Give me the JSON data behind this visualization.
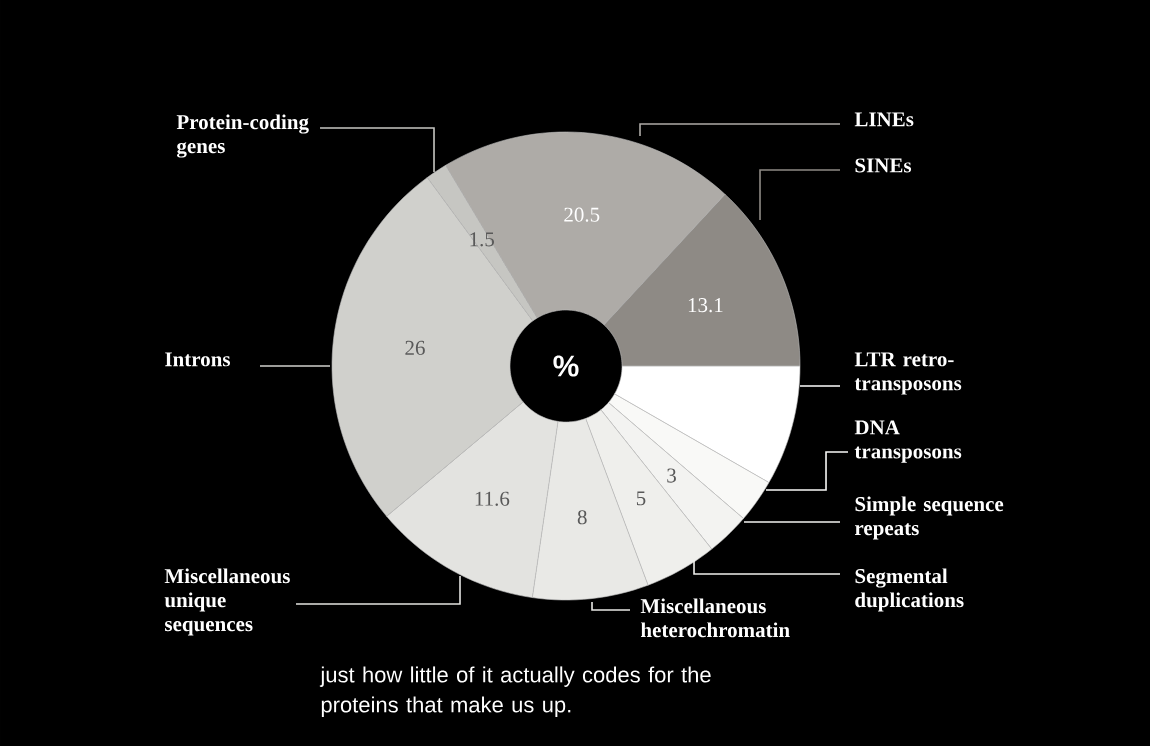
{
  "chart_data": {
    "type": "donut",
    "categories": [
      "LTR retro-transposons",
      "DNA transposons",
      "Simple sequence repeats",
      "Segmental duplications",
      "Miscellaneous heterochromatin",
      "Miscellaneous unique sequences",
      "Introns",
      "Protein-coding genes",
      "LINEs",
      "SINEs"
    ],
    "values": [
      8.3,
      3,
      3,
      5,
      8,
      11.6,
      26,
      1.5,
      20.5,
      13.1
    ],
    "value_labels": [
      null,
      null,
      "3",
      "5",
      "8",
      "11.6",
      "26",
      "1.5",
      "20.5",
      "13.1"
    ],
    "colors": [
      "#ffffff",
      "#f9f9f7",
      "#f3f3f1",
      "#efefec",
      "#e9e9e6",
      "#e3e3e0",
      "#d0d0cc",
      "#c6c6c2",
      "#aeaba7",
      "#8e8a85"
    ],
    "annotations": [
      "%",
      "just how little of it actually codes for the proteins that make us up."
    ]
  }
}
